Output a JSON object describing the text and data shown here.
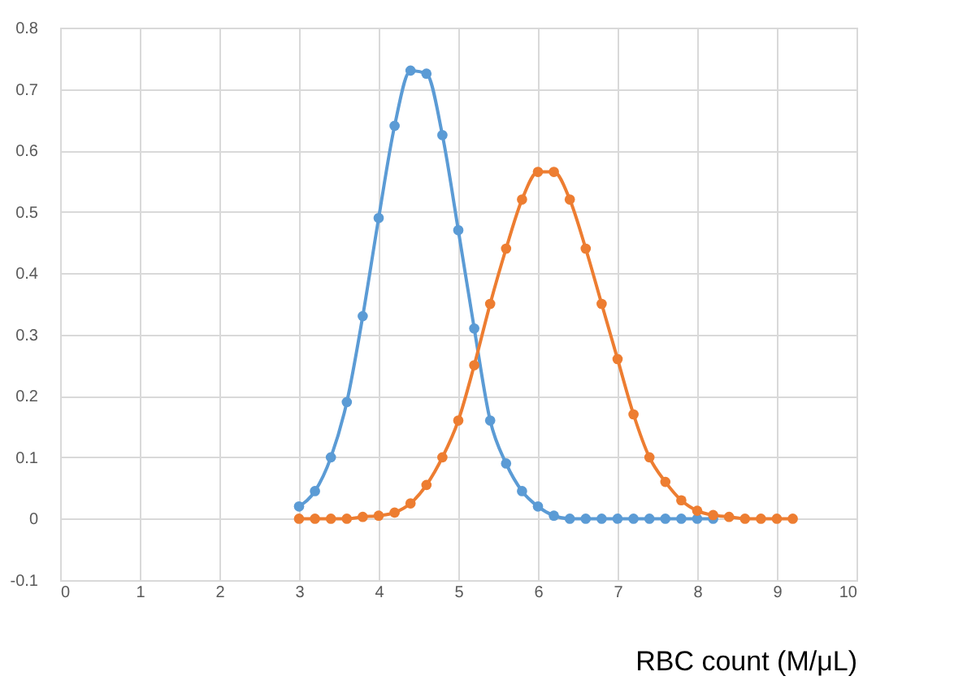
{
  "chart_data": {
    "type": "line",
    "xlabel": "RBC count  (M/μL)",
    "xlim": [
      0,
      10
    ],
    "xticks": [
      0,
      1,
      2,
      3,
      4,
      5,
      6,
      7,
      8,
      9,
      10
    ],
    "ylim": [
      -0.1,
      0.8
    ],
    "yticks": [
      -0.1,
      0,
      0.1,
      0.2,
      0.3,
      0.4,
      0.5,
      0.6,
      0.7,
      0.8
    ],
    "grid": true,
    "marker": "circle",
    "line_style": "solid",
    "series": [
      {
        "color": "#5b9bd5",
        "x": [
          3,
          3.2,
          3.4,
          3.6,
          3.8,
          4,
          4.2,
          4.4,
          4.6,
          4.8,
          5,
          5.2,
          5.4,
          5.6,
          5.8,
          6,
          6.2,
          6.4,
          6.6,
          6.8,
          7,
          7.2,
          7.4,
          7.6,
          7.8,
          8,
          8.2
        ],
        "values": [
          0.02,
          0.045,
          0.1,
          0.19,
          0.33,
          0.49,
          0.64,
          0.73,
          0.725,
          0.625,
          0.47,
          0.31,
          0.16,
          0.09,
          0.045,
          0.02,
          0.005,
          0,
          0,
          0,
          0,
          0,
          0,
          0,
          0,
          0,
          0
        ]
      },
      {
        "color": "#ed7d31",
        "x": [
          3,
          3.2,
          3.4,
          3.6,
          3.8,
          4,
          4.2,
          4.4,
          4.6,
          4.8,
          5,
          5.2,
          5.4,
          5.6,
          5.8,
          6,
          6.2,
          6.4,
          6.6,
          6.8,
          7,
          7.2,
          7.4,
          7.6,
          7.8,
          8,
          8.2,
          8.4,
          8.6,
          8.8,
          9,
          9.2
        ],
        "values": [
          0,
          0,
          0,
          0,
          0.003,
          0.005,
          0.01,
          0.025,
          0.055,
          0.1,
          0.16,
          0.25,
          0.35,
          0.44,
          0.52,
          0.565,
          0.565,
          0.52,
          0.44,
          0.35,
          0.26,
          0.17,
          0.1,
          0.06,
          0.03,
          0.013,
          0.006,
          0.003,
          0,
          0,
          0,
          0
        ]
      }
    ]
  }
}
